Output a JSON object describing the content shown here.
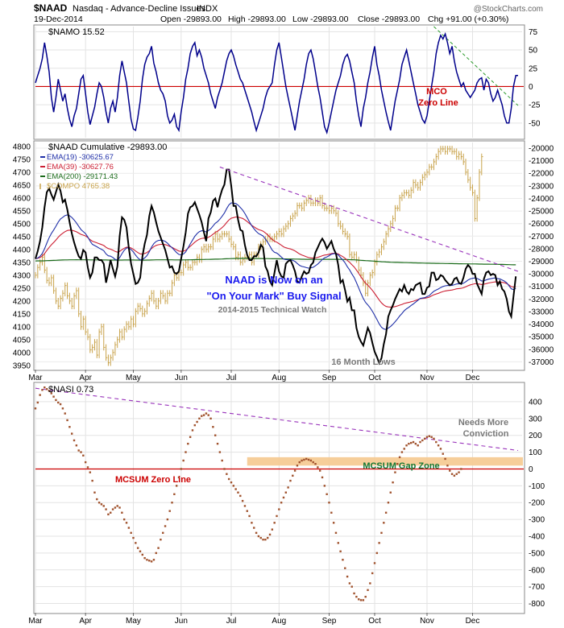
{
  "header": {
    "symbol": "$NAAD",
    "name": "Nasdaq - Advance-Decline Issues",
    "exchange": "INDX",
    "date": "19-Dec-2014",
    "open": "Open -29893.00",
    "high": "High -29893.00",
    "low": "Low -29893.00",
    "close": "Close -29893.00",
    "change": "Chg +91.00 (+0.30%)",
    "watermark": "@StockCharts.com"
  },
  "colors": {
    "namo": "#00008b",
    "zero_line": "#cc0000",
    "naad": "#000000",
    "ema19": "#1f2fa8",
    "ema39": "#cc1f33",
    "ema200": "#1a6b1a",
    "compo": "#c8a24a",
    "trend": "#9933bb",
    "namo_trend": "#2a9a2a",
    "nasi": "#a0522d",
    "gap_zone": "#f5c98f",
    "annot_blue": "#1a1aee",
    "annot_grey": "#7a7a7a",
    "annot_green": "#117733"
  },
  "x_axis": {
    "months": [
      "Mar",
      "Apr",
      "May",
      "Jun",
      "Jul",
      "Aug",
      "Sep",
      "Oct",
      "Nov",
      "Dec"
    ],
    "month_start_days": [
      0,
      22,
      43,
      64,
      86,
      107,
      129,
      149,
      172,
      192
    ],
    "total_days": 212
  },
  "chart_data": [
    {
      "type": "line",
      "title": "$NAMO 15.52",
      "series": [
        {
          "name": "$NAMO",
          "values": [
            5,
            15,
            25,
            38,
            60,
            42,
            20,
            -15,
            -35,
            -15,
            10,
            -5,
            -20,
            -10,
            -30,
            -45,
            -55,
            -40,
            -30,
            -10,
            10,
            15,
            -10,
            -35,
            -52,
            -40,
            -28,
            -10,
            5,
            0,
            -15,
            -35,
            -50,
            -30,
            -20,
            -35,
            -15,
            15,
            35,
            20,
            5,
            -20,
            -45,
            -58,
            -60,
            -42,
            -20,
            10,
            30,
            40,
            45,
            55,
            32,
            20,
            5,
            -5,
            -10,
            -20,
            -40,
            -50,
            -46,
            -38,
            -55,
            -60,
            -35,
            -15,
            10,
            25,
            45,
            55,
            60,
            42,
            50,
            40,
            25,
            15,
            5,
            -10,
            -20,
            -30,
            -15,
            -5,
            5,
            20,
            35,
            45,
            50,
            42,
            30,
            20,
            10,
            5,
            -5,
            -15,
            -25,
            -35,
            -48,
            -60,
            -50,
            -40,
            -30,
            -15,
            -5,
            0,
            5,
            30,
            50,
            60,
            40,
            20,
            0,
            -15,
            -30,
            -45,
            -60,
            -40,
            -20,
            -5,
            10,
            30,
            45,
            50,
            38,
            20,
            0,
            -15,
            -35,
            -55,
            -63,
            -50,
            -35,
            -20,
            -5,
            5,
            15,
            30,
            40,
            44,
            35,
            20,
            5,
            -20,
            -40,
            -55,
            -30,
            -15,
            5,
            20,
            40,
            55,
            30,
            15,
            -5,
            -20,
            -35,
            -48,
            -60,
            -40,
            -20,
            -5,
            10,
            30,
            40,
            50,
            35,
            20,
            5,
            -10,
            -25,
            -35,
            -45,
            -50,
            -40,
            -20,
            0,
            20,
            45,
            60,
            70,
            65,
            72,
            60,
            45,
            55,
            35,
            20,
            10,
            0,
            5,
            -5,
            -10,
            -15,
            -10,
            -5,
            5,
            10,
            12,
            -5,
            10,
            5,
            -10,
            -20,
            -15,
            -5,
            -15,
            -25,
            -40,
            -50,
            -50,
            -30,
            0,
            15,
            15
          ],
          "color": "#00008b"
        }
      ],
      "y_ticks": [
        -50,
        -25,
        0,
        25,
        50,
        75
      ],
      "ylim": [
        -70,
        82
      ],
      "zero_line": 0,
      "trendline": {
        "from": [
          175,
          82
        ],
        "to": [
          212,
          -26
        ]
      },
      "annotations": [
        "MCO",
        "Zero Line"
      ]
    },
    {
      "type": "line",
      "title": "$NAAD Cumulative -29893.00",
      "series": [
        {
          "name": "EMA(19) -30625.67",
          "color": "#1f2fa8"
        },
        {
          "name": "EMA(39) -30627.76",
          "color": "#cc1f33"
        },
        {
          "name": "EMA(200) -29171.43",
          "color": "#1a6b1a"
        },
        {
          "name": "$COMPO 4765.38",
          "color": "#c8a24a"
        }
      ],
      "naad_values": [
        -28800,
        -28200,
        -27400,
        -26300,
        -24700,
        -23500,
        -23200,
        -23700,
        -24100,
        -23500,
        -22900,
        -23400,
        -24300,
        -24100,
        -24900,
        -25900,
        -26800,
        -27500,
        -28100,
        -28600,
        -28800,
        -28100,
        -28300,
        -29500,
        -30300,
        -29900,
        -28700,
        -28700,
        -28900,
        -28900,
        -29200,
        -30700,
        -29900,
        -28900,
        -29600,
        -30200,
        -29400,
        -27000,
        -25500,
        -25700,
        -26300,
        -27900,
        -29200,
        -30000,
        -30800,
        -30700,
        -30300,
        -28600,
        -27600,
        -26900,
        -25400,
        -24600,
        -25100,
        -25900,
        -26600,
        -27100,
        -27600,
        -28100,
        -28800,
        -29500,
        -29400,
        -29900,
        -30000,
        -29800,
        -28800,
        -27800,
        -26700,
        -25200,
        -24700,
        -24600,
        -24300,
        -24800,
        -25300,
        -25900,
        -26700,
        -27400,
        -25600,
        -25100,
        -24200,
        -24000,
        -24700,
        -23900,
        -23300,
        -22900,
        -21700,
        -21700,
        -23000,
        -24600,
        -24600,
        -25700,
        -26500,
        -26600,
        -27700,
        -28500,
        -28900,
        -28900,
        -28600,
        -28600,
        -28300,
        -27700,
        -27900,
        -29400,
        -29800,
        -30600,
        -30900,
        -29900,
        -28900,
        -29800,
        -30200,
        -30300,
        -29200,
        -29000,
        -28900,
        -29300,
        -29800,
        -30600,
        -30700,
        -30200,
        -29800,
        -30000,
        -29900,
        -29300,
        -29100,
        -28300,
        -27900,
        -27500,
        -27200,
        -27500,
        -28000,
        -27700,
        -27400,
        -28000,
        -28400,
        -29300,
        -30700,
        -30500,
        -31300,
        -32200,
        -31900,
        -32900,
        -32900,
        -34300,
        -35000,
        -35400,
        -35700,
        -35000,
        -34300,
        -34700,
        -35500,
        -36200,
        -36600,
        -37100,
        -36700,
        -35600,
        -34800,
        -33400,
        -32900,
        -32500,
        -32000,
        -31600,
        -31200,
        -31400,
        -30900,
        -31400,
        -31600,
        -31200,
        -31300,
        -30900,
        -30800,
        -30700,
        -31600,
        -31600,
        -31100,
        -31000,
        -29900,
        -29900,
        -30500,
        -30400,
        -30100,
        -30200,
        -30500,
        -30700,
        -30900,
        -30800,
        -30400,
        -30300,
        -30700,
        -30800,
        -30300,
        -29600,
        -29300,
        -29500,
        -30000,
        -30000,
        -30800,
        -31200,
        -31600,
        -30400,
        -29900,
        -29800,
        -30100,
        -30000,
        -30100,
        -30900,
        -30600,
        -31200,
        -31400,
        -32000,
        -33000,
        -33400,
        -31800,
        -30200
      ],
      "compo_values": [
        4300,
        4330,
        4350,
        4370,
        4320,
        4280,
        4270,
        4290,
        4240,
        4200,
        4180,
        4210,
        4230,
        4260,
        4220,
        4200,
        4180,
        4220,
        4240,
        4150,
        4100,
        4130,
        4080,
        4060,
        4010,
        4020,
        4040,
        3990,
        4080,
        4100,
        4020,
        3980,
        3960,
        3980,
        4000,
        4030,
        4050,
        4080,
        4060,
        4090,
        4110,
        4100,
        4130,
        4110,
        4160,
        4180,
        4170,
        4150,
        4160,
        4190,
        4210,
        4230,
        4200,
        4180,
        4200,
        4230,
        4220,
        4200,
        4230,
        4230,
        4270,
        4300,
        4290,
        4310,
        4310,
        4340,
        4350,
        4330,
        4330,
        4350,
        4350,
        4370,
        4360,
        4400,
        4410,
        4400,
        4410,
        4410,
        4440,
        4460,
        4440,
        4450,
        4460,
        4460,
        4460,
        4440,
        4420,
        4410,
        4370,
        4380,
        4350,
        4360,
        4370,
        4370,
        4380,
        4350,
        4380,
        4380,
        4410,
        4420,
        4430,
        4440,
        4450,
        4440,
        4440,
        4450,
        4460,
        4470,
        4460,
        4480,
        4490,
        4500,
        4520,
        4530,
        4540,
        4570,
        4570,
        4560,
        4580,
        4590,
        4600,
        4580,
        4580,
        4590,
        4580,
        4600,
        4570,
        4560,
        4560,
        4550,
        4560,
        4550,
        4540,
        4500,
        4490,
        4470,
        4460,
        4450,
        4380,
        4370,
        4380,
        4360,
        4320,
        4300,
        4270,
        4230,
        4270,
        4300,
        4310,
        4350,
        4380,
        4390,
        4410,
        4430,
        4460,
        4480,
        4500,
        4520,
        4560,
        4560,
        4600,
        4610,
        4620,
        4620,
        4610,
        4630,
        4660,
        4650,
        4640,
        4660,
        4680,
        4690,
        4700,
        4720,
        4720,
        4740,
        4760,
        4780,
        4790,
        4790,
        4780,
        4790,
        4790,
        4780,
        4780,
        4760,
        4770,
        4760,
        4740,
        4700,
        4670,
        4640,
        4620,
        4520,
        4600,
        4700,
        4760
      ],
      "y_ticks_naad": [
        -20000,
        -21000,
        -22000,
        -23000,
        -24000,
        -25000,
        -26000,
        -27000,
        -28000,
        -29000,
        -30000,
        -31000,
        -32000,
        -33000,
        -34000,
        -35000,
        -36000,
        -37000
      ],
      "y_ticks_compo": [
        4800,
        4750,
        4700,
        4650,
        4600,
        4550,
        4500,
        4450,
        4400,
        4350,
        4300,
        4250,
        4200,
        4150,
        4100,
        4050,
        4000,
        3950
      ],
      "ylim_naad": [
        -37550,
        -19550
      ],
      "ylim_compo": [
        3937,
        4815
      ],
      "trendline": {
        "from": [
          81,
          -21500
        ],
        "to": [
          212,
          -29800
        ]
      },
      "annotations": [
        "NAAD is Now on an",
        "\"On Your Mark\" Buy Signal",
        "2014-2015 Technical Watch",
        "16 Month Lows"
      ]
    },
    {
      "type": "scatter",
      "title": "$NASI 0.73",
      "series": [
        {
          "name": "$NASI",
          "values": [
            360,
            395,
            440,
            470,
            485,
            475,
            465,
            450,
            430,
            410,
            395,
            385,
            360,
            330,
            290,
            250,
            210,
            170,
            140,
            110,
            100,
            80,
            40,
            10,
            -20,
            -70,
            -140,
            -180,
            -200,
            -210,
            -220,
            -240,
            -270,
            -260,
            -240,
            -230,
            -220,
            -230,
            -260,
            -300,
            -320,
            -350,
            -380,
            -410,
            -440,
            -470,
            -490,
            -510,
            -530,
            -540,
            -545,
            -550,
            -540,
            -500,
            -470,
            -420,
            -380,
            -340,
            -300,
            -250,
            -200,
            -150,
            -100,
            -50,
            0,
            50,
            100,
            150,
            190,
            230,
            260,
            280,
            300,
            315,
            320,
            330,
            320,
            300,
            250,
            200,
            150,
            100,
            50,
            0,
            -30,
            -60,
            -80,
            -100,
            -120,
            -140,
            -160,
            -190,
            -220,
            -250,
            -280,
            -320,
            -350,
            -380,
            -400,
            -410,
            -420,
            -420,
            -410,
            -390,
            -360,
            -320,
            -280,
            -240,
            -200,
            -170,
            -140,
            -110,
            -70,
            -40,
            -10,
            20,
            40,
            50,
            55,
            60,
            55,
            50,
            40,
            30,
            10,
            -10,
            -50,
            -100,
            -150,
            -200,
            -260,
            -320,
            -380,
            -440,
            -490,
            -540,
            -590,
            -640,
            -680,
            -700,
            -740,
            -760,
            -775,
            -780,
            -780,
            -760,
            -720,
            -680,
            -620,
            -560,
            -500,
            -440,
            -380,
            -320,
            -260,
            -200,
            -140,
            -80,
            -20,
            30,
            70,
            100,
            120,
            140,
            150,
            155,
            160,
            150,
            140,
            160,
            170,
            180,
            190,
            195,
            190,
            180,
            160,
            140,
            120,
            90,
            60,
            20,
            -10,
            -30,
            -40,
            -30,
            -20,
            0
          ],
          "color": "#a0522d"
        }
      ],
      "y_ticks": [
        400,
        300,
        200,
        100,
        0,
        -100,
        -200,
        -300,
        -400,
        -500,
        -600,
        -700,
        -800
      ],
      "ylim": [
        -850,
        505
      ],
      "zero_line": 0,
      "gap_zone": [
        0,
        70
      ],
      "trendline": {
        "from": [
          0,
          480
        ],
        "to": [
          212,
          110
        ]
      },
      "annotations": [
        "MCSUM Zero Line",
        "MCSUM Gap Zone",
        "Needs More",
        "Conviction"
      ]
    }
  ]
}
